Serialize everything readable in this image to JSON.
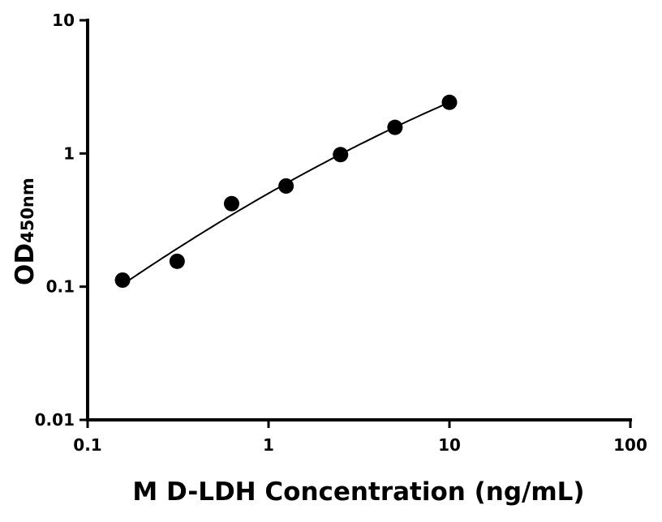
{
  "chart_data": {
    "type": "scatter",
    "title": "",
    "xlabel": "M D-LDH Concentration (ng/mL)",
    "ylabel": "OD",
    "ylabel_sub": "450nm",
    "xscale": "log",
    "yscale": "log",
    "xlim": [
      0.1,
      100
    ],
    "ylim": [
      0.01,
      10
    ],
    "xticks": [
      "0.1",
      "1",
      "10",
      "100"
    ],
    "yticks": [
      "0.01",
      "0.1",
      "1",
      "10"
    ],
    "grid": false,
    "fit_curve": true,
    "x": [
      0.156,
      0.3125,
      0.625,
      1.25,
      2.5,
      5,
      10
    ],
    "y": [
      0.112,
      0.155,
      0.42,
      0.57,
      0.98,
      1.57,
      2.42
    ],
    "colors": {
      "points": "#000000",
      "curve": "#000000"
    }
  }
}
